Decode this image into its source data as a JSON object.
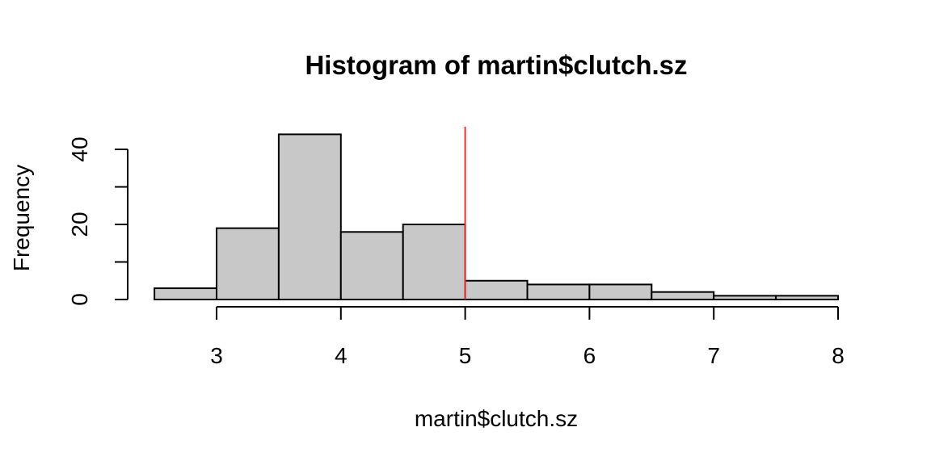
{
  "chart_data": {
    "type": "bar",
    "title": "Histogram of martin$clutch.sz",
    "xlabel": "martin$clutch.sz",
    "ylabel": "Frequency",
    "bins": [
      {
        "from": 2.5,
        "to": 3.0,
        "count": 3
      },
      {
        "from": 3.0,
        "to": 3.5,
        "count": 19
      },
      {
        "from": 3.5,
        "to": 4.0,
        "count": 44
      },
      {
        "from": 4.0,
        "to": 4.5,
        "count": 18
      },
      {
        "from": 4.5,
        "to": 5.0,
        "count": 20
      },
      {
        "from": 5.0,
        "to": 5.5,
        "count": 5
      },
      {
        "from": 5.5,
        "to": 6.0,
        "count": 4
      },
      {
        "from": 6.0,
        "to": 6.5,
        "count": 4
      },
      {
        "from": 6.5,
        "to": 7.0,
        "count": 2
      },
      {
        "from": 7.0,
        "to": 7.5,
        "count": 1
      },
      {
        "from": 7.5,
        "to": 8.0,
        "count": 1
      }
    ],
    "xlim": [
      2.5,
      8.0
    ],
    "ylim": [
      0,
      44
    ],
    "x_ticks": [
      3,
      4,
      5,
      6,
      7,
      8
    ],
    "y_ticks": [
      0,
      10,
      20,
      30,
      40
    ],
    "y_tick_labels": [
      "0",
      "",
      "20",
      "",
      "40"
    ],
    "reference_line": {
      "x": 5,
      "color": "#e8322b"
    },
    "bar_fill": "#c8c8c8",
    "grid": false
  }
}
